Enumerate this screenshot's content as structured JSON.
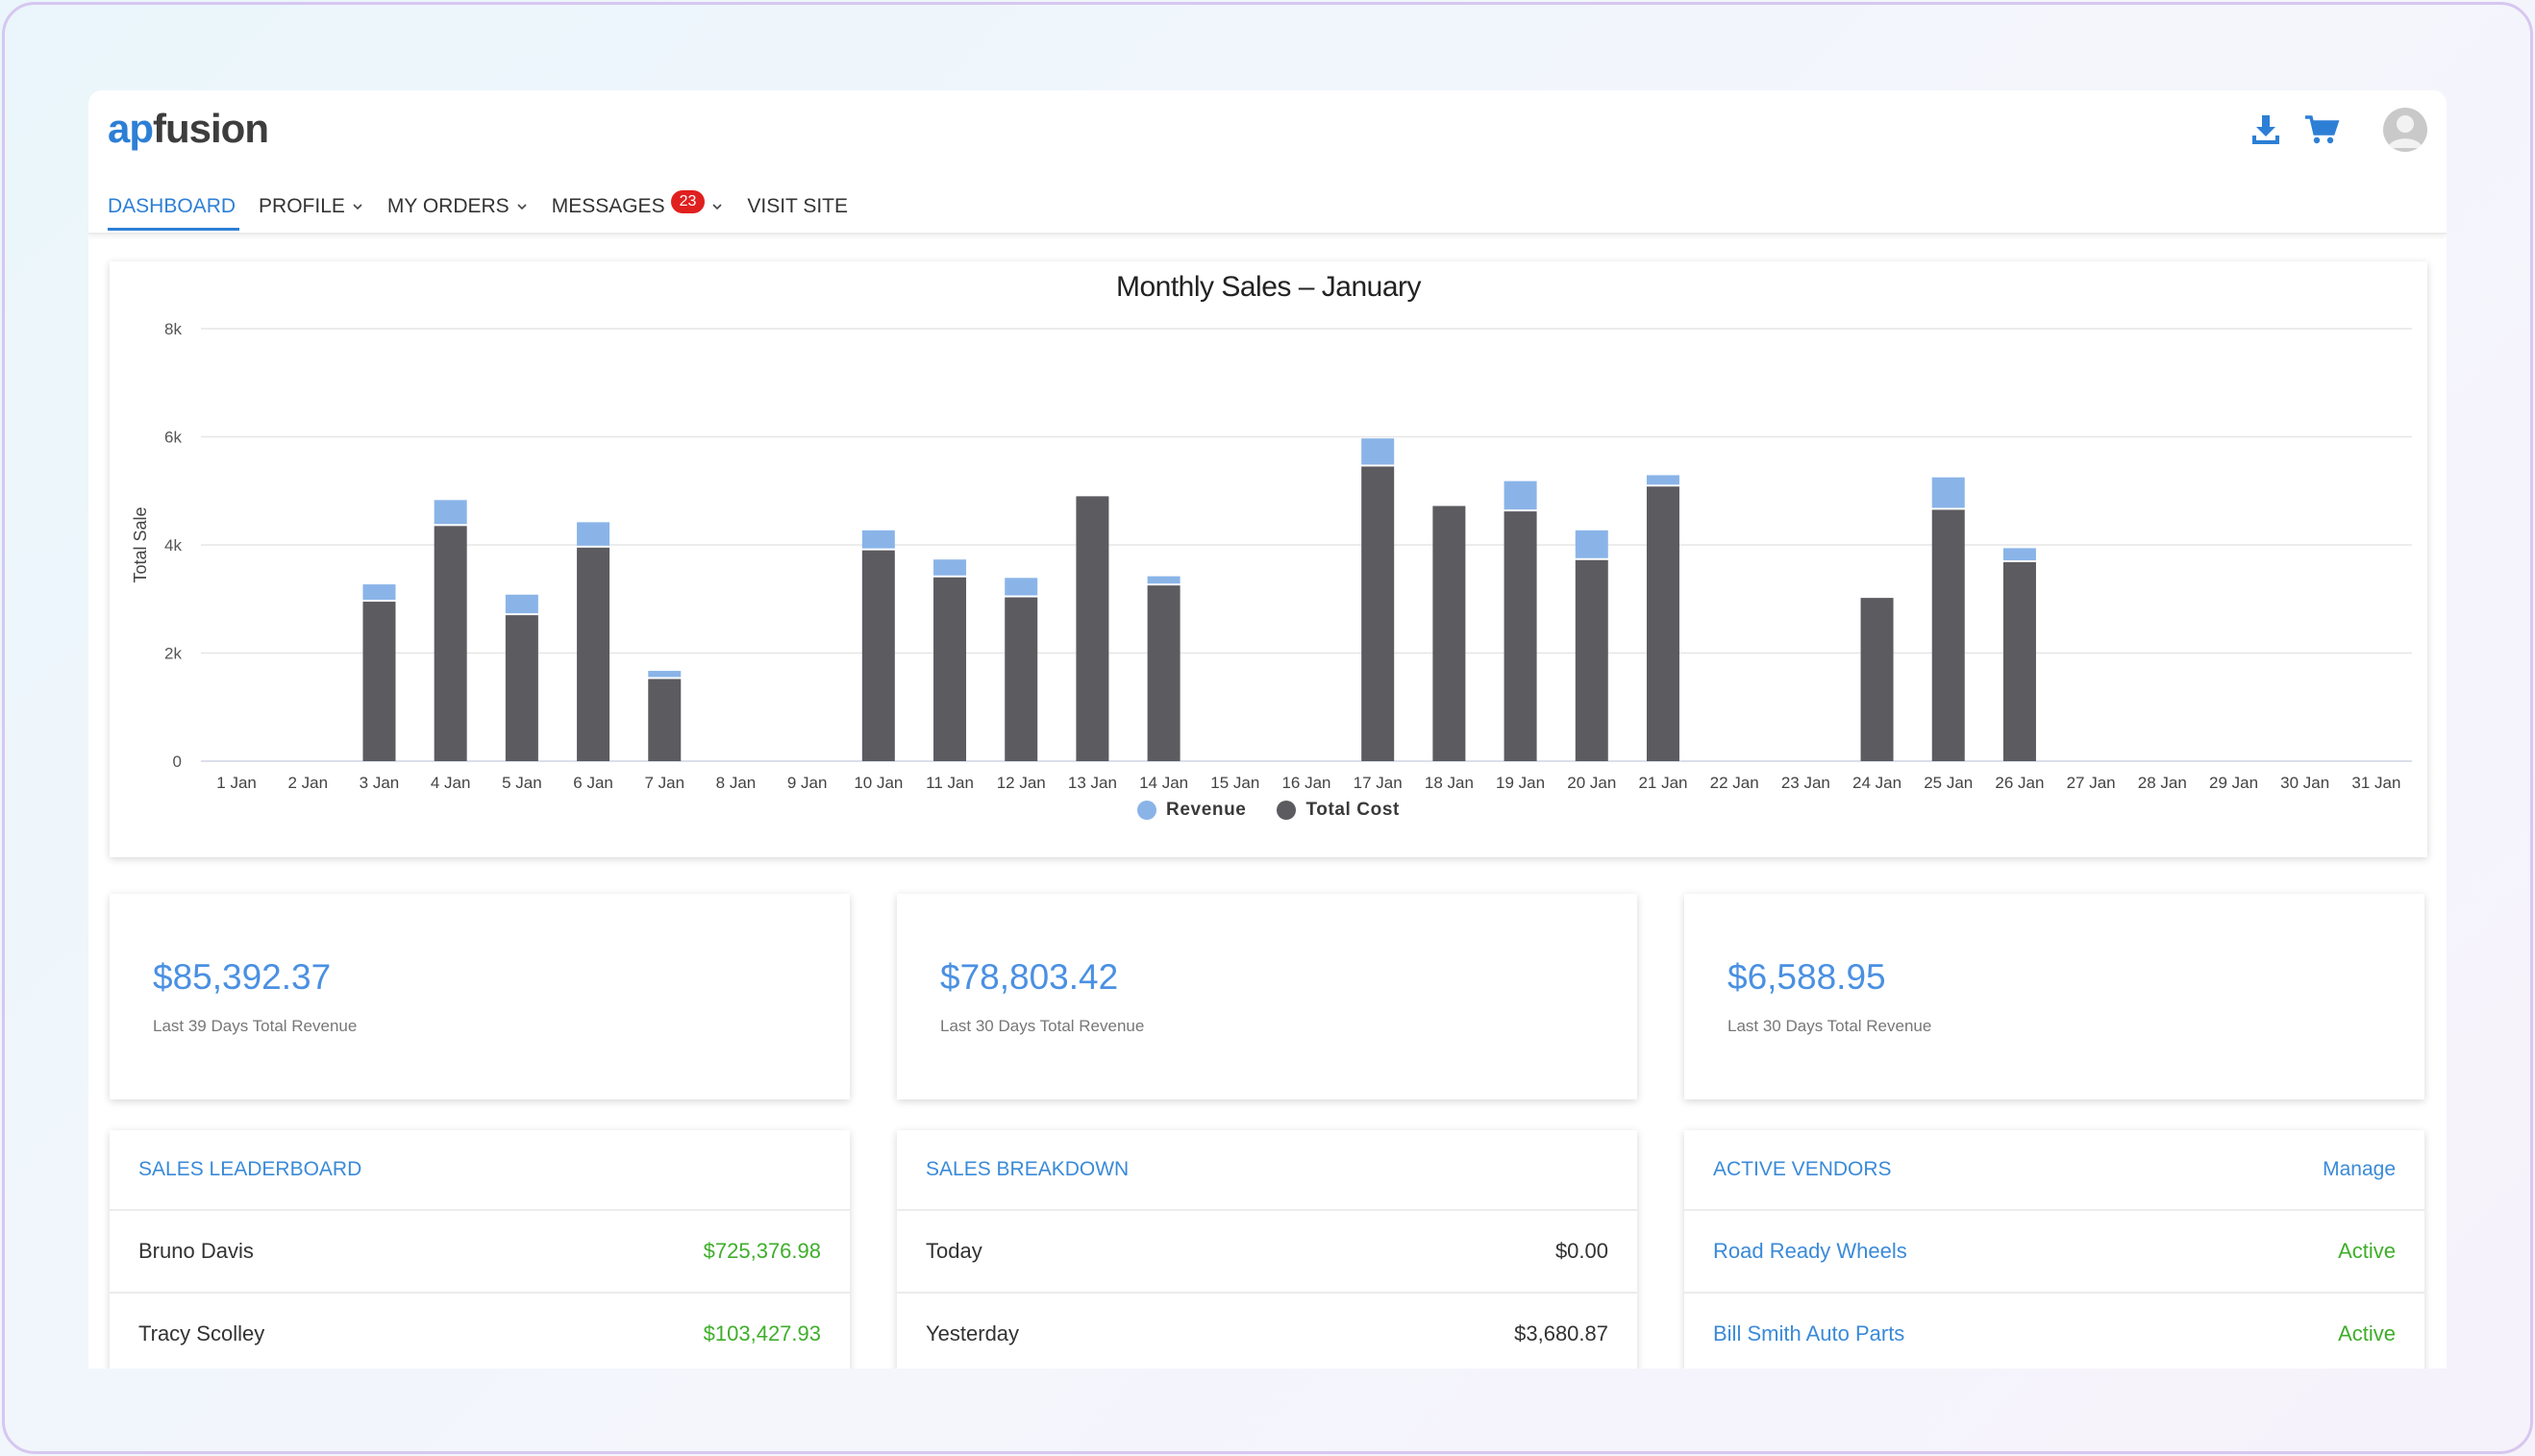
{
  "brand": {
    "part1": "ap",
    "part2": "fusion",
    "accent": "#2d7fd6"
  },
  "nav": {
    "items": [
      {
        "label": "DASHBOARD",
        "active": true,
        "dropdown": false
      },
      {
        "label": "PROFILE",
        "active": false,
        "dropdown": true
      },
      {
        "label": "MY ORDERS",
        "active": false,
        "dropdown": true
      },
      {
        "label": "MESSAGES",
        "active": false,
        "dropdown": true,
        "badge": "23"
      },
      {
        "label": "VISIT SITE",
        "active": false,
        "dropdown": false
      }
    ]
  },
  "header_icons": [
    "download-icon",
    "cart-icon",
    "avatar"
  ],
  "chart_data": {
    "type": "bar",
    "stacked": true,
    "title": "Monthly Sales – January",
    "xlabel": "",
    "ylabel": "Total Sale",
    "ylim": [
      0,
      8000
    ],
    "yticks": [
      0,
      2000,
      4000,
      6000,
      8000
    ],
    "ytick_labels": [
      "0",
      "2k",
      "4k",
      "6k",
      "8k"
    ],
    "grid": true,
    "legend_position": "bottom",
    "categories": [
      "1 Jan",
      "2 Jan",
      "3 Jan",
      "4 Jan",
      "5 Jan",
      "6 Jan",
      "7 Jan",
      "8 Jan",
      "9 Jan",
      "10 Jan",
      "11 Jan",
      "12 Jan",
      "13 Jan",
      "14 Jan",
      "15 Jan",
      "16 Jan",
      "17 Jan",
      "18 Jan",
      "19 Jan",
      "20 Jan",
      "21 Jan",
      "22 Jan",
      "23 Jan",
      "24 Jan",
      "25 Jan",
      "26 Jan",
      "27 Jan",
      "28 Jan",
      "29 Jan",
      "30 Jan",
      "31 Jan"
    ],
    "series": [
      {
        "name": "Total Cost",
        "color": "#5b5b60",
        "values": [
          0,
          0,
          2950,
          4350,
          2700,
          3950,
          1520,
          0,
          0,
          3900,
          3400,
          3030,
          4900,
          3250,
          0,
          0,
          5450,
          4720,
          4620,
          3720,
          5080,
          0,
          0,
          3020,
          4650,
          3680,
          0,
          0,
          0,
          0,
          0
        ]
      },
      {
        "name": "Revenue",
        "color": "#8ab4e8",
        "values": [
          0,
          0,
          320,
          480,
          380,
          470,
          150,
          0,
          0,
          370,
          330,
          360,
          0,
          170,
          0,
          0,
          520,
          0,
          560,
          550,
          210,
          0,
          0,
          0,
          600,
          260,
          0,
          0,
          0,
          0,
          0
        ]
      }
    ]
  },
  "stats": [
    {
      "value": "$85,392.37",
      "label": "Last 39 Days Total Revenue"
    },
    {
      "value": "$78,803.42",
      "label": "Last 30 Days Total Revenue"
    },
    {
      "value": "$6,588.95",
      "label": "Last 30 Days Total Revenue"
    }
  ],
  "leaderboard": {
    "title": "SALES LEADERBOARD",
    "rows": [
      {
        "name": "Bruno Davis",
        "value": "$725,376.98"
      },
      {
        "name": "Tracy Scolley",
        "value": "$103,427.93"
      }
    ]
  },
  "breakdown": {
    "title": "SALES BREAKDOWN",
    "rows": [
      {
        "name": "Today",
        "value": "$0.00"
      },
      {
        "name": "Yesterday",
        "value": "$3,680.87"
      }
    ]
  },
  "vendors": {
    "title": "ACTIVE VENDORS",
    "action": "Manage",
    "rows": [
      {
        "name": "Road Ready Wheels",
        "status": "Active"
      },
      {
        "name": "Bill Smith Auto Parts",
        "status": "Active"
      }
    ]
  }
}
